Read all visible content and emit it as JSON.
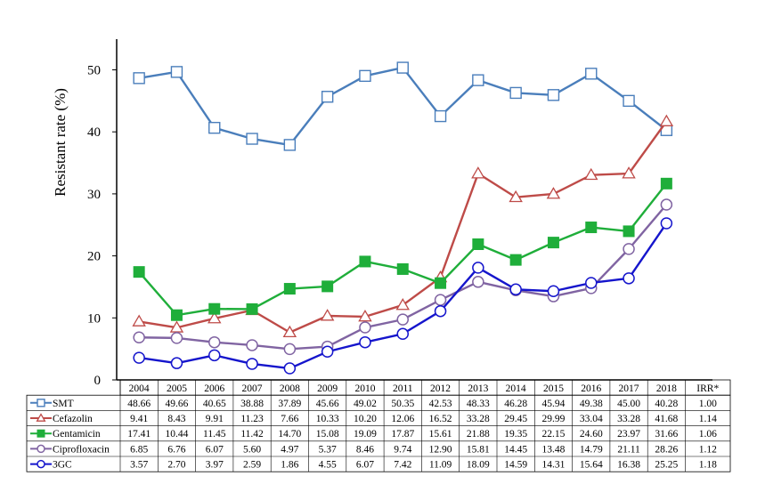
{
  "chart_data": {
    "type": "line",
    "title": "",
    "xlabel": "",
    "ylabel": "Resistant rate (%)",
    "ylim": [
      0,
      55
    ],
    "yticks": [
      0,
      10,
      20,
      30,
      40,
      50
    ],
    "grid": false,
    "categories": [
      "2004",
      "2005",
      "2006",
      "2007",
      "2008",
      "2009",
      "2010",
      "2011",
      "2012",
      "2013",
      "2014",
      "2015",
      "2016",
      "2017",
      "2018"
    ],
    "extra_column_header": "IRR*",
    "series": [
      {
        "name": "SMT",
        "color": "#4a7ebb",
        "marker": "square-open",
        "values": [
          "48.66",
          "49.66",
          "40.65",
          "38.88",
          "37.89",
          "45.66",
          "49.02",
          "50.35",
          "42.53",
          "48.33",
          "46.28",
          "45.94",
          "49.38",
          "45.00",
          "40.28"
        ],
        "irr": "1.00"
      },
      {
        "name": "Cefazolin",
        "color": "#be4b48",
        "marker": "triangle-open",
        "values": [
          "9.41",
          "8.43",
          "9.91",
          "11.23",
          "7.66",
          "10.33",
          "10.20",
          "12.06",
          "16.52",
          "33.28",
          "29.45",
          "29.99",
          "33.04",
          "33.28",
          "41.68"
        ],
        "irr": "1.14"
      },
      {
        "name": "Gentamicin",
        "color": "#1fae3a",
        "marker": "square-filled",
        "values": [
          "17.41",
          "10.44",
          "11.45",
          "11.42",
          "14.70",
          "15.08",
          "19.09",
          "17.87",
          "15.61",
          "21.88",
          "19.35",
          "22.15",
          "24.60",
          "23.97",
          "31.66"
        ],
        "irr": "1.06"
      },
      {
        "name": "Ciprofloxacin",
        "color": "#8064a2",
        "marker": "circle-open",
        "values": [
          "6.85",
          "6.76",
          "6.07",
          "5.60",
          "4.97",
          "5.37",
          "8.46",
          "9.74",
          "12.90",
          "15.81",
          "14.45",
          "13.48",
          "14.79",
          "21.11",
          "28.26"
        ],
        "irr": "1.12"
      },
      {
        "name": "3GC",
        "color": "#1515cc",
        "marker": "circle-open",
        "values": [
          "3.57",
          "2.70",
          "3.97",
          "2.59",
          "1.86",
          "4.55",
          "6.07",
          "7.42",
          "11.09",
          "18.09",
          "14.59",
          "14.31",
          "15.64",
          "16.38",
          "25.25"
        ],
        "irr": "1.18"
      }
    ]
  }
}
